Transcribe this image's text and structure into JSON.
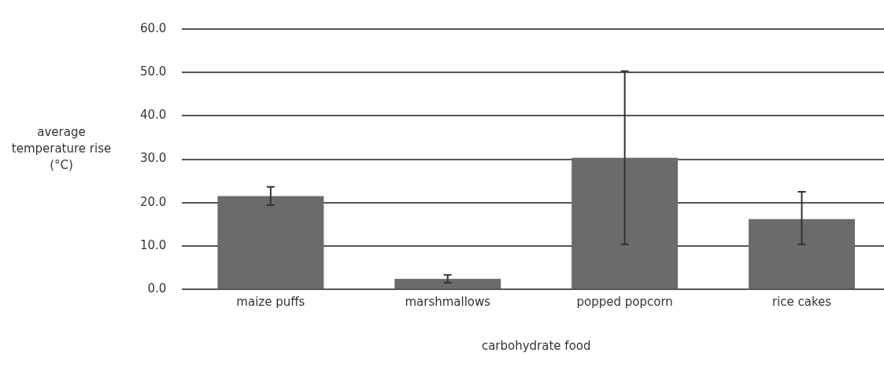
{
  "chart_data": {
    "type": "bar",
    "xlabel": "carbohydrate food",
    "ylabel": "average temperature rise (°C)",
    "categories": [
      "maize puffs",
      "marshmallows",
      "popped popcorn",
      "rice cakes"
    ],
    "values": [
      21.5,
      2.4,
      30.3,
      16.2
    ],
    "errors": [
      [
        19.4,
        23.6
      ],
      [
        1.5,
        3.3
      ],
      [
        10.4,
        50.3
      ],
      [
        10.4,
        22.5
      ]
    ],
    "color": "#6b6b6b",
    "ylim": [
      0,
      60
    ],
    "yticks": [
      {
        "value": 0,
        "label": "0.0"
      },
      {
        "value": 10,
        "label": "10.0"
      },
      {
        "value": 20,
        "label": "20.0"
      },
      {
        "value": 30,
        "label": "30.0"
      },
      {
        "value": 40,
        "label": "40.0"
      },
      {
        "value": 50,
        "label": "50.0"
      },
      {
        "value": 60,
        "label": "60.0"
      }
    ],
    "grid": "y",
    "legend": false
  }
}
